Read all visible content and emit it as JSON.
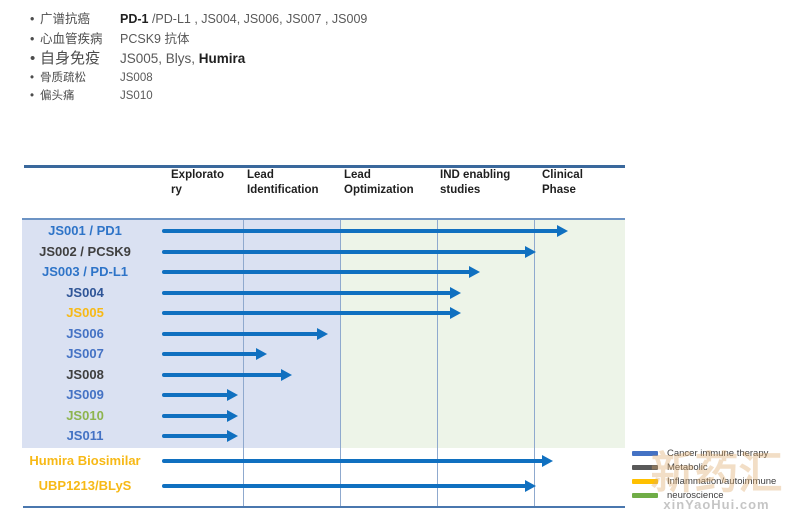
{
  "bullet_char": "•",
  "summary": [
    {
      "size": "normal",
      "label": "广谱抗癌",
      "segments": [
        {
          "t": "PD-1 ",
          "b": true
        },
        {
          "t": "/PD-L1 , JS004, JS006, JS007 , JS009",
          "b": false
        }
      ]
    },
    {
      "size": "normal",
      "label": "心血管疾病",
      "segments": [
        {
          "t": "PCSK9 抗体",
          "b": false
        }
      ]
    },
    {
      "size": "large",
      "label": "自身免疫",
      "segments": [
        {
          "t": "JS005, Blys, ",
          "b": false
        },
        {
          "t": "Humira",
          "b": true
        }
      ]
    },
    {
      "size": "small",
      "label": "骨质疏松",
      "segments": [
        {
          "t": "JS008",
          "b": false
        }
      ]
    },
    {
      "size": "small",
      "label": "偏头痛",
      "segments": [
        {
          "t": "JS010",
          "b": false
        }
      ]
    }
  ],
  "colors": {
    "arrow": "#1070C0",
    "blue_bright": "#2E74C8",
    "blue": "#4472C4",
    "navy": "#2F5597",
    "dark": "#3F3F3F",
    "gold": "#F7B916",
    "green": "#8EB44E",
    "region_blue": "#DAE1F2",
    "region_green": "#EDF4E8",
    "legend_blue": "#4472C4",
    "legend_gray": "#595959",
    "legend_yellow": "#FFC000",
    "legend_green": "#70AD47"
  },
  "chart_data": {
    "type": "bar",
    "subtype": "pipeline-gantt-arrows",
    "title": "",
    "phase_axis": [
      "Exploratory",
      "Lead Identification",
      "Lead Optimization",
      "IND enabling studies",
      "Clinical Phase"
    ],
    "columns": [
      {
        "line1": "Explorato",
        "line2": "ry"
      },
      {
        "line1": "Lead",
        "line2": "Identification"
      },
      {
        "line1": "Lead",
        "line2": "Optimization"
      },
      {
        "line1": "IND enabling",
        "line2": "studies"
      },
      {
        "line1": "Clinical",
        "line2": "Phase"
      }
    ],
    "start_phase": 0.165,
    "rows": [
      {
        "label": "JS001 / PD1",
        "color": "blue_bright",
        "end_phase": 4.35,
        "section": "main"
      },
      {
        "label": "JS002 / PCSK9",
        "color": "dark",
        "end_phase": 4.02,
        "section": "main"
      },
      {
        "label": "JS003 / PD-L1",
        "color": "blue_bright",
        "end_phase": 3.44,
        "section": "main"
      },
      {
        "label": "JS004",
        "color": "navy",
        "end_phase": 3.25,
        "section": "main"
      },
      {
        "label": "JS005",
        "color": "gold",
        "end_phase": 3.25,
        "section": "main"
      },
      {
        "label": "JS006",
        "color": "blue",
        "end_phase": 1.88,
        "section": "main"
      },
      {
        "label": "JS007",
        "color": "blue",
        "end_phase": 1.25,
        "section": "main"
      },
      {
        "label": "JS008",
        "color": "dark",
        "end_phase": 1.51,
        "section": "main"
      },
      {
        "label": "JS009",
        "color": "blue",
        "end_phase": 0.95,
        "section": "main"
      },
      {
        "label": "JS010",
        "color": "green",
        "end_phase": 0.95,
        "section": "main"
      },
      {
        "label": "JS011",
        "color": "blue",
        "end_phase": 0.95,
        "section": "main"
      },
      {
        "label": "Humira Biosimilar",
        "color": "gold",
        "end_phase": 4.2,
        "section": "bottom"
      },
      {
        "label": "UBP1213/BLyS",
        "color": "gold",
        "end_phase": 4.02,
        "section": "bottom"
      }
    ],
    "legend": [
      {
        "label": "Cancer immune therapy",
        "color_key": "legend_blue"
      },
      {
        "label": "Metabolic",
        "color_key": "legend_gray"
      },
      {
        "label": "Inflammation/autoimmune",
        "color_key": "legend_yellow"
      },
      {
        "label": "neuroscience",
        "color_key": "legend_green"
      }
    ],
    "legend_position": "bottom-right",
    "grid": "vertical-phase-boundaries"
  },
  "watermark": {
    "line1": "新药汇",
    "line2": "xinYaoHui.com"
  }
}
